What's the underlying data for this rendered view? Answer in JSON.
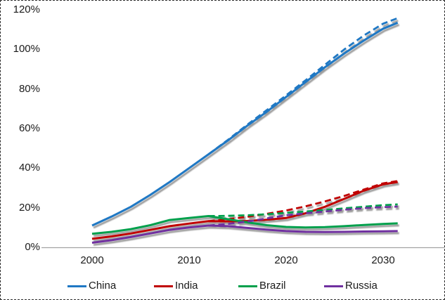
{
  "figure": {
    "background": "#ffffff",
    "border_color": "#2b2b2b",
    "axis_line_color": "#a3a3a3",
    "text_color": "#1a1a1a"
  },
  "chart_data": {
    "type": "line",
    "title": "",
    "xlabel": "",
    "ylabel": "",
    "grid": "off",
    "legend_position": "bottom",
    "ylim": [
      0,
      120
    ],
    "y_ticks": [
      "120%",
      "100%",
      "80%",
      "60%",
      "40%",
      "20%",
      "0%"
    ],
    "x_ticks": [
      "2000",
      "2010",
      "2020",
      "2030"
    ],
    "x": [
      2000,
      2002,
      2004,
      2006,
      2008,
      2010,
      2012,
      2014,
      2016,
      2018,
      2020,
      2022,
      2024,
      2026,
      2028,
      2030,
      2031.5
    ],
    "series": [
      {
        "name": "China",
        "style": "solid",
        "color": "#1F78C4",
        "values": [
          11,
          15.5,
          20.5,
          26.5,
          33,
          40,
          47,
          54,
          61.5,
          68.5,
          76,
          83.5,
          91,
          98,
          104.5,
          110.5,
          113.5
        ]
      },
      {
        "name": "China (projection)",
        "style": "dashed",
        "color": "#1F78C4",
        "values": [
          null,
          null,
          null,
          null,
          null,
          null,
          47,
          54.3,
          62,
          69.3,
          76.8,
          84.4,
          92.2,
          100,
          107,
          113,
          115.8
        ]
      },
      {
        "name": "India",
        "style": "solid",
        "color": "#C00000",
        "values": [
          4.3,
          5.5,
          7,
          8.8,
          10.7,
          12,
          13.2,
          13.1,
          13.3,
          13.9,
          14.8,
          17.2,
          20.5,
          24.5,
          28.6,
          31.8,
          33
        ]
      },
      {
        "name": "India (projection)",
        "style": "dashed",
        "color": "#C00000",
        "values": [
          null,
          null,
          null,
          null,
          null,
          null,
          13.2,
          14.2,
          15.4,
          16.9,
          18.6,
          20.7,
          23.2,
          26,
          29.2,
          32.3,
          33.5
        ]
      },
      {
        "name": "Brazil",
        "style": "solid",
        "color": "#00A04C",
        "values": [
          6.8,
          7.8,
          9.2,
          11.2,
          13.8,
          14.8,
          15.8,
          14.2,
          12.6,
          11.2,
          10.3,
          10,
          10.2,
          10.7,
          11.3,
          11.8,
          12.1
        ]
      },
      {
        "name": "Brazil (projection)",
        "style": "dashed",
        "color": "#00A04C",
        "values": [
          null,
          null,
          null,
          null,
          null,
          null,
          15.8,
          15.9,
          16.2,
          16.7,
          17.4,
          18.1,
          18.9,
          19.7,
          20.5,
          21.3,
          21.7
        ]
      },
      {
        "name": "Russia",
        "style": "solid",
        "color": "#7030A0",
        "values": [
          2.3,
          3.6,
          5.2,
          7,
          8.8,
          10,
          11,
          10.7,
          9.8,
          8.9,
          8.2,
          7.8,
          7.7,
          7.8,
          8,
          8.1,
          8.2
        ]
      },
      {
        "name": "Russia (projection)",
        "style": "dashed",
        "color": "#7030A0",
        "values": [
          null,
          null,
          null,
          null,
          null,
          null,
          11,
          11.8,
          13,
          14.6,
          16.2,
          17.2,
          18.1,
          19,
          19.8,
          20.3,
          20.6
        ]
      }
    ],
    "legend": [
      {
        "label": "China",
        "color": "#1F78C4"
      },
      {
        "label": "India",
        "color": "#C00000"
      },
      {
        "label": "Brazil",
        "color": "#00A04C"
      },
      {
        "label": "Russia",
        "color": "#7030A0"
      }
    ]
  }
}
